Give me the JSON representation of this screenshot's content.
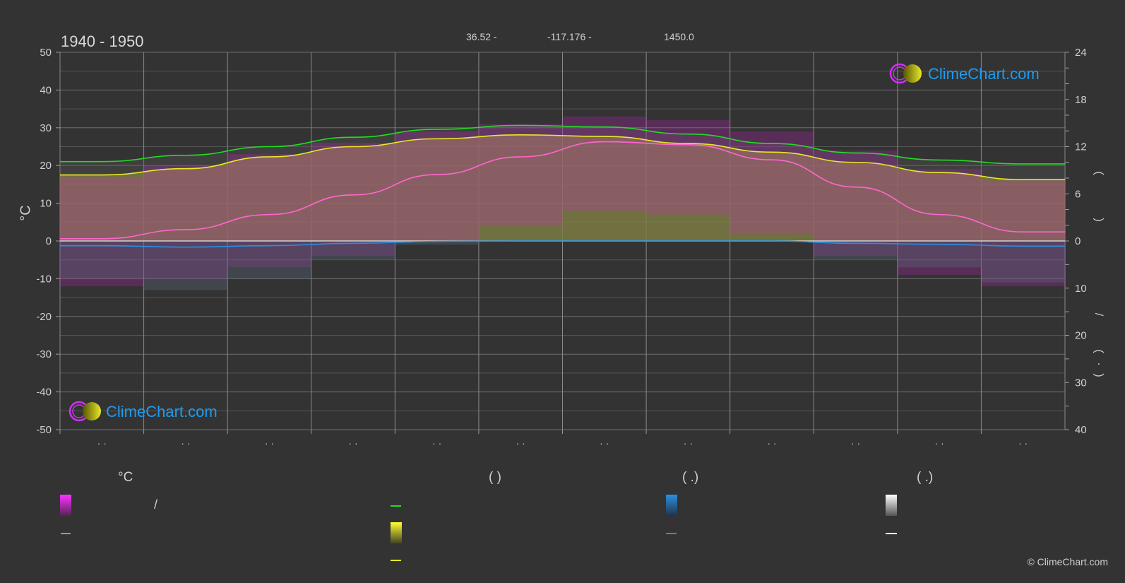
{
  "header": {
    "period": "1940 - 1950",
    "lat": "36.52 -",
    "lon": "-117.176 -",
    "elev": "1450.0"
  },
  "axis": {
    "left_label": "°C",
    "right_parens": [
      "(",
      ")",
      "/",
      "(",
      ")",
      "·"
    ]
  },
  "legend": {
    "col1_head": "°C",
    "col2_head": "(          )",
    "col3_head": "(    .)",
    "col4_head": "(    .)",
    "slash": "/"
  },
  "branding": {
    "logo": "ClimeChart.com",
    "copyright": "© ClimeChart.com"
  },
  "colors": {
    "bg": "#333333",
    "grid": "#6a6a6a",
    "grid_bright": "#8a8a8a",
    "daylight": "#22dd22",
    "sunshine": "#e8e82a",
    "temp_mean": "#ff66cc",
    "rain": "#2a90e0",
    "snow": "#ffffff",
    "magenta": "#e020e0",
    "olive": "#9a9a3a"
  },
  "chart_data": {
    "type": "line",
    "categories": [
      "",
      "",
      "",
      "",
      "",
      "",
      "",
      "",
      "",
      "",
      "",
      ""
    ],
    "x_tick_labels": [
      "· ·",
      "· ·",
      "· ·",
      "· ·",
      "· ·",
      "· ·",
      "· ·",
      "· ·",
      "· ·",
      "· ·",
      "· ·",
      "· ·"
    ],
    "left_axis": {
      "label": "°C",
      "ylim": [
        -50,
        50
      ],
      "ticks": [
        50,
        40,
        30,
        20,
        10,
        0,
        -10,
        -20,
        -30,
        -40,
        -50
      ]
    },
    "right_axis_top": {
      "ylim": [
        0,
        24
      ],
      "ticks": [
        24,
        18,
        12,
        6,
        0
      ]
    },
    "right_axis_bottom": {
      "ylim": [
        0,
        40
      ],
      "ticks": [
        10,
        20,
        30,
        40
      ]
    },
    "grid": true,
    "series": [
      {
        "key": "daylight",
        "axis": "right_top",
        "values": [
          10.1,
          10.9,
          12.0,
          13.2,
          14.2,
          14.7,
          14.5,
          13.6,
          12.4,
          11.2,
          10.3,
          9.8
        ]
      },
      {
        "key": "sunshine",
        "axis": "right_top",
        "values": [
          8.4,
          9.2,
          10.7,
          12.0,
          13.0,
          13.5,
          13.3,
          12.4,
          11.3,
          10.0,
          8.7,
          7.8
        ]
      },
      {
        "key": "temp_mean",
        "axis": "left",
        "values": [
          0.6,
          3.0,
          7.0,
          12.2,
          17.6,
          22.3,
          26.3,
          25.5,
          21.5,
          14.3,
          7.0,
          2.4
        ]
      },
      {
        "key": "rain",
        "axis": "right_bottom",
        "values": [
          1.0,
          1.3,
          1.0,
          0.5,
          0.1,
          0.0,
          0.0,
          0.0,
          0.0,
          0.5,
          0.7,
          1.1
        ]
      }
    ],
    "temp_range_top": [
      17,
      20,
      23,
      26,
      29,
      31,
      33,
      32,
      29,
      24,
      19,
      16
    ],
    "temp_range_bottom": [
      -12,
      -10,
      -7,
      -4,
      0,
      4,
      8,
      7,
      2,
      -4,
      -9,
      -12
    ]
  }
}
